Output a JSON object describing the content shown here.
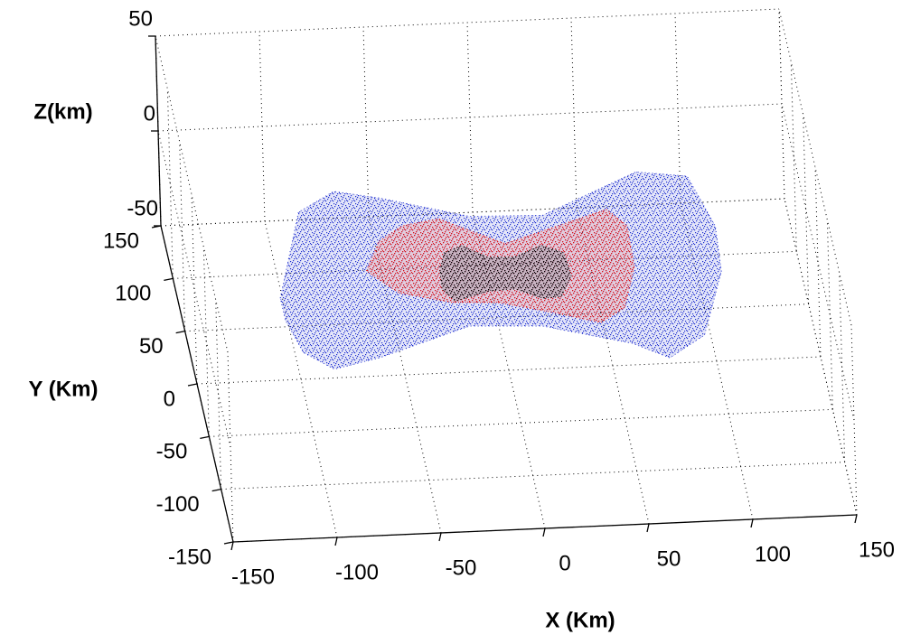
{
  "chart_data": {
    "type": "scatter",
    "xlabel": "X (Km)",
    "ylabel": "Y (Km)",
    "zlabel": "Z(km)",
    "xlim": [
      -150,
      150
    ],
    "ylim": [
      -150,
      150
    ],
    "zlim": [
      -50,
      50
    ],
    "xticks": [
      -150,
      -100,
      -50,
      0,
      50,
      100,
      150
    ],
    "yticks": [
      -150,
      -100,
      -50,
      0,
      50,
      100,
      150
    ],
    "zticks": [
      -50,
      0,
      50
    ],
    "grid": true,
    "series": [
      {
        "color": "#1f2fd0",
        "x": [
          -110,
          -92,
          -73,
          -52,
          -11,
          24,
          73,
          97,
          105,
          103,
          88,
          69,
          53,
          12,
          -23,
          -69,
          -92,
          -105,
          -110
        ],
        "y": [
          -12,
          68,
          86,
          78,
          57,
          55,
          92,
          86,
          38,
          -5,
          -64,
          -84,
          -69,
          -49,
          -46,
          -72,
          -81,
          -64,
          -33
        ]
      },
      {
        "color": "#e01010",
        "x": [
          -66,
          -57,
          -44,
          -26,
          3,
          31,
          55,
          63,
          62,
          53,
          40,
          17,
          -7,
          -29,
          -53
        ],
        "y": [
          10,
          37,
          51,
          56,
          30,
          45,
          58,
          42,
          3,
          -35,
          -48,
          -36,
          -25,
          -23,
          -12
        ]
      },
      {
        "color": "#000000",
        "x": [
          -31,
          -27,
          -18,
          -7,
          6,
          20,
          30,
          31,
          24,
          15,
          3,
          -10,
          -27,
          -32
        ],
        "y": [
          7,
          24,
          30,
          18,
          17,
          27,
          19,
          -3,
          -22,
          -23,
          -13,
          -14,
          -22,
          -10
        ]
      }
    ]
  }
}
